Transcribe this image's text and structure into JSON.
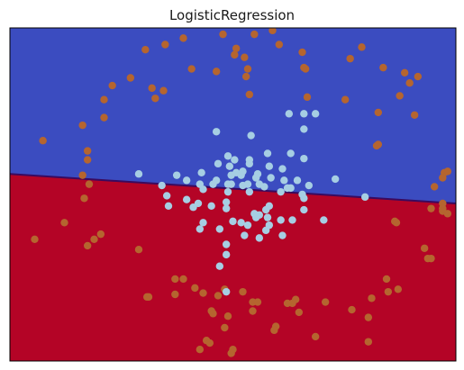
{
  "chart_data": {
    "type": "scatter",
    "title": "LogisticRegression",
    "xlabel": "",
    "ylabel": "",
    "xlim": [
      -1.35,
      1.35
    ],
    "ylim": [
      -1.3,
      1.3
    ],
    "grid": false,
    "ticks_visible": false,
    "decision_boundary": {
      "line": [
        [
          -1.35,
          0.16
        ],
        [
          1.35,
          -0.07
        ]
      ],
      "region_above": {
        "class": 0,
        "color": "#3b4cc0"
      },
      "region_below": {
        "class": 1,
        "color": "#b40426"
      },
      "boundary_color": "#3a0a5e"
    },
    "series": [
      {
        "class": 0,
        "color": "#b5652f",
        "points": [
          [
            0.24,
            1.28
          ],
          [
            0.13,
            1.25
          ],
          [
            -0.06,
            1.25
          ],
          [
            -0.3,
            1.22
          ],
          [
            0.28,
            1.17
          ],
          [
            0.02,
            1.14
          ],
          [
            -0.41,
            1.17
          ],
          [
            -0.53,
            1.13
          ],
          [
            0.42,
            1.11
          ],
          [
            0.78,
            1.15
          ],
          [
            0.71,
            1.06
          ],
          [
            0.01,
            1.09
          ],
          [
            0.07,
            1.07
          ],
          [
            0.44,
            0.98
          ],
          [
            -0.25,
            0.98
          ],
          [
            0.09,
            0.98
          ],
          [
            1.04,
            0.95
          ],
          [
            -0.1,
            0.96
          ],
          [
            0.43,
            0.99
          ],
          [
            0.91,
            0.99
          ],
          [
            -0.62,
            0.91
          ],
          [
            1.12,
            0.92
          ],
          [
            0.08,
            0.92
          ],
          [
            1.07,
            0.87
          ],
          [
            -0.49,
            0.83
          ],
          [
            -0.73,
            0.85
          ],
          [
            -0.42,
            0.81
          ],
          [
            -0.47,
            0.75
          ],
          [
            1.01,
            0.77
          ],
          [
            0.1,
            0.78
          ],
          [
            -0.78,
            0.74
          ],
          [
            0.68,
            0.74
          ],
          [
            0.45,
            0.76
          ],
          [
            -0.78,
            0.6
          ],
          [
            -0.91,
            0.54
          ],
          [
            0.88,
            0.64
          ],
          [
            1.1,
            0.62
          ],
          [
            -1.15,
            0.42
          ],
          [
            0.87,
            0.38
          ],
          [
            0.88,
            0.39
          ],
          [
            -0.88,
            0.34
          ],
          [
            -0.91,
            0.15
          ],
          [
            1.28,
            0.17
          ],
          [
            1.27,
            0.13
          ],
          [
            1.3,
            0.18
          ],
          [
            -0.88,
            0.27
          ],
          [
            -0.87,
            0.08
          ],
          [
            1.27,
            -0.07
          ],
          [
            1.22,
            0.06
          ],
          [
            -0.9,
            -0.03
          ],
          [
            1.27,
            -0.11
          ],
          [
            1.27,
            -0.13
          ],
          [
            1.3,
            -0.15
          ],
          [
            1.2,
            -0.11
          ],
          [
            0.98,
            -0.21
          ],
          [
            0.99,
            -0.22
          ],
          [
            -1.02,
            -0.22
          ],
          [
            -0.8,
            -0.31
          ],
          [
            -0.84,
            -0.35
          ],
          [
            -1.2,
            -0.35
          ],
          [
            -0.88,
            -0.4
          ],
          [
            -0.57,
            -0.43
          ],
          [
            1.16,
            -0.42
          ],
          [
            1.18,
            -0.5
          ],
          [
            1.2,
            -0.5
          ],
          [
            -0.3,
            -0.66
          ],
          [
            -0.35,
            -0.66
          ],
          [
            -0.23,
            -0.73
          ],
          [
            -0.18,
            -0.77
          ],
          [
            0.93,
            -0.66
          ],
          [
            0.94,
            -0.76
          ],
          [
            0.84,
            -0.81
          ],
          [
            1.0,
            -0.74
          ],
          [
            -0.05,
            -0.74
          ],
          [
            0.06,
            -0.76
          ],
          [
            -0.35,
            -0.78
          ],
          [
            -0.51,
            -0.8
          ],
          [
            -0.52,
            -0.8
          ],
          [
            -0.09,
            -0.79
          ],
          [
            0.12,
            -0.84
          ],
          [
            0.15,
            -0.84
          ],
          [
            0.36,
            -0.85
          ],
          [
            0.33,
            -0.85
          ],
          [
            0.38,
            -0.82
          ],
          [
            0.56,
            -0.84
          ],
          [
            0.4,
            -0.92
          ],
          [
            0.12,
            -0.91
          ],
          [
            -0.13,
            -0.91
          ],
          [
            -0.12,
            -0.93
          ],
          [
            0.82,
            -0.96
          ],
          [
            0.72,
            -0.9
          ],
          [
            -0.03,
            -0.95
          ],
          [
            0.26,
            -1.03
          ],
          [
            -0.05,
            -1.04
          ],
          [
            0.25,
            -1.06
          ],
          [
            0.5,
            -1.11
          ],
          [
            -0.16,
            -1.14
          ],
          [
            0.82,
            -1.15
          ],
          [
            -0.14,
            -1.16
          ],
          [
            0.0,
            -1.21
          ],
          [
            -0.2,
            -1.21
          ],
          [
            -0.01,
            -1.24
          ]
        ]
      },
      {
        "class": 1,
        "color": "#a6cee3",
        "points": [
          [
            0.34,
            0.63
          ],
          [
            0.43,
            0.63
          ],
          [
            0.5,
            0.63
          ],
          [
            -0.1,
            0.49
          ],
          [
            0.11,
            0.46
          ],
          [
            0.43,
            0.51
          ],
          [
            0.21,
            0.32
          ],
          [
            0.35,
            0.32
          ],
          [
            0.43,
            0.28
          ],
          [
            -0.03,
            0.3
          ],
          [
            0.01,
            0.27
          ],
          [
            -0.02,
            0.22
          ],
          [
            0.1,
            0.24
          ],
          [
            0.22,
            0.22
          ],
          [
            -0.09,
            0.24
          ],
          [
            0.1,
            0.27
          ],
          [
            0.3,
            0.2
          ],
          [
            0.15,
            0.16
          ],
          [
            0.02,
            0.17
          ],
          [
            -0.01,
            0.15
          ],
          [
            0.05,
            0.15
          ],
          [
            0.06,
            0.18
          ],
          [
            -0.19,
            0.17
          ],
          [
            -0.34,
            0.15
          ],
          [
            -0.57,
            0.16
          ],
          [
            -0.28,
            0.11
          ],
          [
            -0.1,
            0.11
          ],
          [
            0.14,
            0.13
          ],
          [
            0.23,
            0.13
          ],
          [
            0.31,
            0.11
          ],
          [
            0.39,
            0.11
          ],
          [
            -0.2,
            0.08
          ],
          [
            -0.03,
            0.08
          ],
          [
            0.09,
            0.08
          ],
          [
            -0.01,
            0.08
          ],
          [
            0.06,
            0.07
          ],
          [
            0.16,
            0.08
          ],
          [
            0.19,
            0.06
          ],
          [
            0.35,
            0.05
          ],
          [
            0.33,
            0.05
          ],
          [
            0.46,
            0.07
          ],
          [
            0.62,
            0.12
          ],
          [
            0.8,
            -0.02
          ],
          [
            -0.43,
            0.07
          ],
          [
            -0.12,
            0.08
          ],
          [
            0.1,
            0.02
          ],
          [
            -0.03,
            0.02
          ],
          [
            -0.4,
            -0.01
          ],
          [
            -0.18,
            0.04
          ],
          [
            0.29,
            0.02
          ],
          [
            0.42,
            0.0
          ],
          [
            0.43,
            -0.03
          ],
          [
            0.22,
            -0.09
          ],
          [
            -0.28,
            -0.04
          ],
          [
            -0.21,
            -0.07
          ],
          [
            -0.13,
            -0.09
          ],
          [
            -0.04,
            -0.06
          ],
          [
            -0.24,
            -0.1
          ],
          [
            -0.04,
            -0.11
          ],
          [
            0.2,
            -0.12
          ],
          [
            0.13,
            -0.15
          ],
          [
            0.16,
            -0.16
          ],
          [
            0.21,
            -0.18
          ],
          [
            0.05,
            -0.22
          ],
          [
            0.29,
            -0.2
          ],
          [
            0.0,
            -0.21
          ],
          [
            0.09,
            -0.24
          ],
          [
            0.14,
            -0.18
          ],
          [
            -0.08,
            -0.27
          ],
          [
            -0.39,
            -0.09
          ],
          [
            -0.18,
            -0.22
          ],
          [
            0.36,
            -0.2
          ],
          [
            0.55,
            -0.2
          ],
          [
            0.43,
            -0.12
          ],
          [
            -0.2,
            -0.27
          ],
          [
            0.3,
            -0.32
          ],
          [
            0.2,
            -0.28
          ],
          [
            0.22,
            -0.24
          ],
          [
            0.07,
            -0.32
          ],
          [
            -0.04,
            -0.39
          ],
          [
            0.16,
            -0.34
          ],
          [
            -0.04,
            -0.47
          ],
          [
            -0.08,
            -0.56
          ],
          [
            -0.04,
            -0.76
          ]
        ]
      }
    ]
  }
}
